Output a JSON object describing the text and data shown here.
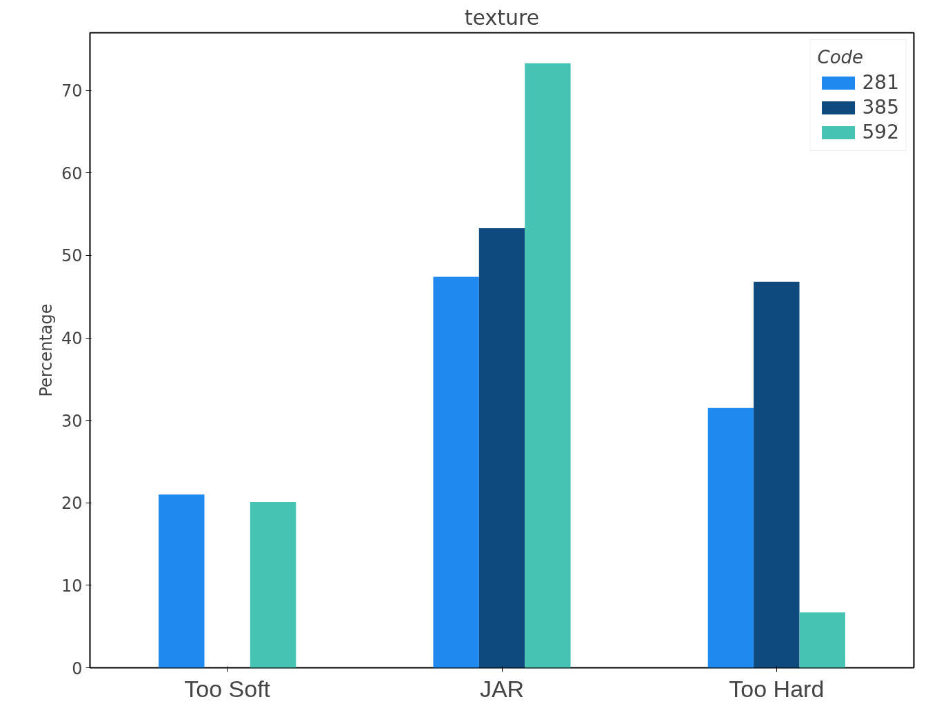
{
  "chart_data": {
    "type": "bar",
    "title": "texture",
    "ylabel": "Percentage",
    "legend_title": "Code",
    "categories": [
      "Too Soft",
      "JAR",
      "Too Hard"
    ],
    "series": [
      {
        "name": "281",
        "color": "#2089ef",
        "values": [
          21.0,
          47.4,
          31.5
        ]
      },
      {
        "name": "385",
        "color": "#0f4a7f",
        "values": [
          0,
          53.3,
          46.8
        ]
      },
      {
        "name": "592",
        "color": "#46c3b2",
        "values": [
          20.1,
          73.3,
          6.7
        ]
      }
    ],
    "ylim": [
      0,
      77
    ],
    "yticks": [
      0,
      10,
      20,
      30,
      40,
      50,
      60,
      70
    ],
    "grid": false,
    "legend": "top right"
  }
}
